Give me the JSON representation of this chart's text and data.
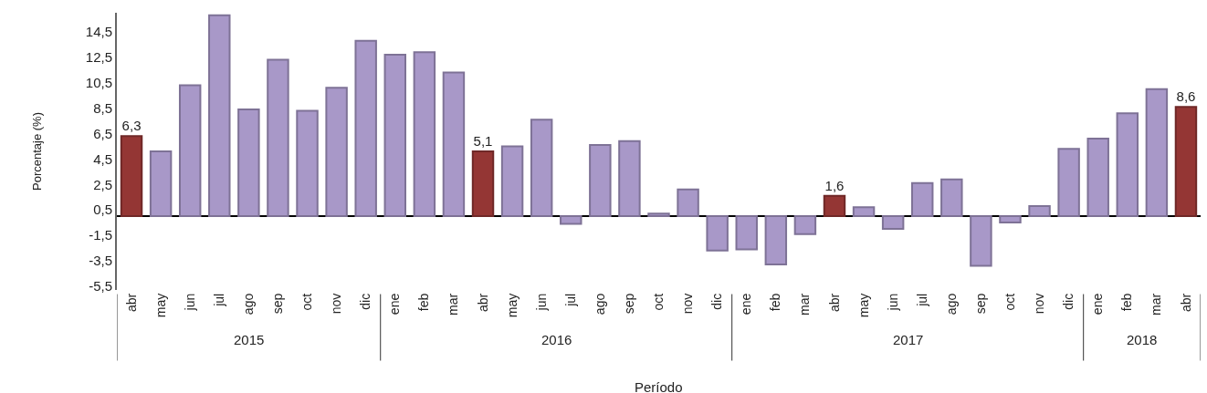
{
  "chart_data": {
    "type": "bar",
    "xlabel": "Período",
    "ylabel": "Porcentaje (%)",
    "categories": [
      "abr",
      "may",
      "jun",
      "jul",
      "ago",
      "sep",
      "oct",
      "nov",
      "dic",
      "ene",
      "feb",
      "mar",
      "abr",
      "may",
      "jun",
      "jul",
      "ago",
      "sep",
      "oct",
      "nov",
      "dic",
      "ene",
      "feb",
      "mar",
      "abr",
      "may",
      "jun",
      "jul",
      "ago",
      "sep",
      "oct",
      "nov",
      "dic",
      "ene",
      "feb",
      "mar",
      "abr"
    ],
    "values": [
      6.3,
      5.1,
      10.3,
      15.8,
      8.4,
      12.3,
      8.3,
      10.1,
      13.8,
      12.7,
      12.9,
      11.3,
      5.1,
      5.5,
      7.6,
      -0.6,
      5.6,
      5.9,
      0.2,
      2.1,
      -2.7,
      -2.6,
      -3.8,
      -1.4,
      1.6,
      0.7,
      -1.0,
      2.6,
      2.9,
      -3.9,
      -0.5,
      0.8,
      5.3,
      6.1,
      8.1,
      10.0,
      8.6
    ],
    "colors": [
      "#943634",
      "#a898c8",
      "#a898c8",
      "#a898c8",
      "#a898c8",
      "#a898c8",
      "#a898c8",
      "#a898c8",
      "#a898c8",
      "#a898c8",
      "#a898c8",
      "#a898c8",
      "#943634",
      "#a898c8",
      "#a898c8",
      "#a898c8",
      "#a898c8",
      "#a898c8",
      "#a898c8",
      "#a898c8",
      "#a898c8",
      "#a898c8",
      "#a898c8",
      "#a898c8",
      "#943634",
      "#a898c8",
      "#a898c8",
      "#a898c8",
      "#a898c8",
      "#a898c8",
      "#a898c8",
      "#a898c8",
      "#a898c8",
      "#a898c8",
      "#a898c8",
      "#a898c8",
      "#943634"
    ],
    "value_labels": [
      "6,3",
      null,
      null,
      null,
      null,
      null,
      null,
      null,
      null,
      null,
      null,
      null,
      "5,1",
      null,
      null,
      null,
      null,
      null,
      null,
      null,
      null,
      null,
      null,
      null,
      "1,6",
      null,
      null,
      null,
      null,
      null,
      null,
      null,
      null,
      null,
      null,
      null,
      "8,6"
    ],
    "ylim": [
      -5.8,
      16.0
    ],
    "yticks": [
      {
        "value": -5.5,
        "label": "-5,5"
      },
      {
        "value": -3.5,
        "label": "-3,5"
      },
      {
        "value": -1.5,
        "label": "-1,5"
      },
      {
        "value": 0.5,
        "label": "0,5"
      },
      {
        "value": 2.5,
        "label": "2,5"
      },
      {
        "value": 4.5,
        "label": "4,5"
      },
      {
        "value": 6.5,
        "label": "6,5"
      },
      {
        "value": 8.5,
        "label": "8,5"
      },
      {
        "value": 10.5,
        "label": "10,5"
      },
      {
        "value": 12.5,
        "label": "12,5"
      },
      {
        "value": 14.5,
        "label": "14,5"
      }
    ],
    "annotations": [
      "2015",
      "2016",
      "2017",
      "2018"
    ]
  }
}
